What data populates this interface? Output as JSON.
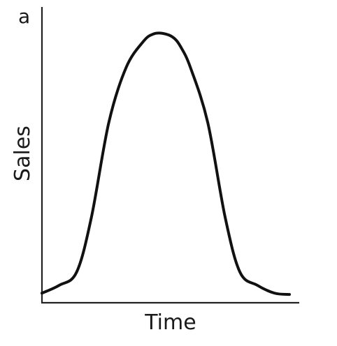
{
  "chart_data": {
    "type": "line",
    "panel_label": "a",
    "xlabel": "Time",
    "ylabel": "Sales",
    "grid": false,
    "legend": "none",
    "color": "#111111",
    "series": [
      {
        "x": [
          0,
          0.07,
          0.14,
          0.2,
          0.27,
          0.34,
          0.41,
          0.45,
          0.49,
          0.53,
          0.56,
          0.6,
          0.67,
          0.74,
          0.8,
          0.87,
          0.94,
          1.0
        ],
        "values": [
          0.01,
          0.04,
          0.09,
          0.3,
          0.66,
          0.87,
          0.97,
          0.998,
          1.0,
          0.985,
          0.95,
          0.87,
          0.66,
          0.3,
          0.09,
          0.04,
          0.01,
          0.005
        ]
      }
    ],
    "xlim": [
      0,
      1
    ],
    "ylim": [
      0,
      1
    ]
  }
}
